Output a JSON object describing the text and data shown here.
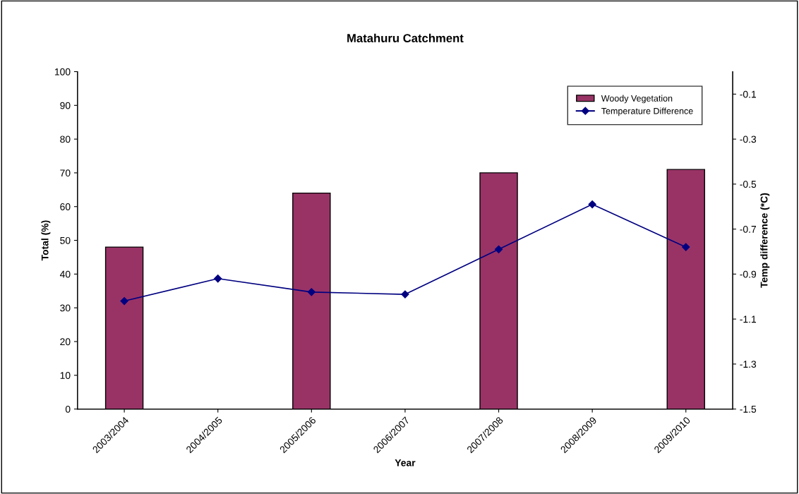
{
  "chart_data": {
    "type": "bar",
    "title": "Matahuru Catchment",
    "xlabel": "Year",
    "ylabel": "Total (%)",
    "y2label": "Temp difference (*C)",
    "categories": [
      "2003/2004",
      "2004/2005",
      "2005/2006",
      "2006/2007",
      "2007/2008",
      "2008/2009",
      "2009/2010"
    ],
    "series": [
      {
        "name": "Woody Vegetation",
        "color": "#993366",
        "values": [
          48,
          null,
          64,
          null,
          70,
          null,
          71
        ]
      },
      {
        "name": "Temperature Difference",
        "type": "line",
        "axis": "y2",
        "color": "#000080",
        "marker": "diamond",
        "values": [
          -1.02,
          -0.92,
          -0.98,
          -0.99,
          -0.79,
          -0.59,
          -0.78
        ]
      }
    ],
    "ylim": [
      0,
      100
    ],
    "yticks": [
      0,
      10,
      20,
      30,
      40,
      50,
      60,
      70,
      80,
      90,
      100
    ],
    "y2lim": [
      -1.5,
      0
    ],
    "y2ticks": [
      -1.5,
      -1.3,
      -1.1,
      -0.9,
      -0.7,
      -0.5,
      -0.3,
      -0.1
    ],
    "grid": false,
    "legend": "top right"
  }
}
